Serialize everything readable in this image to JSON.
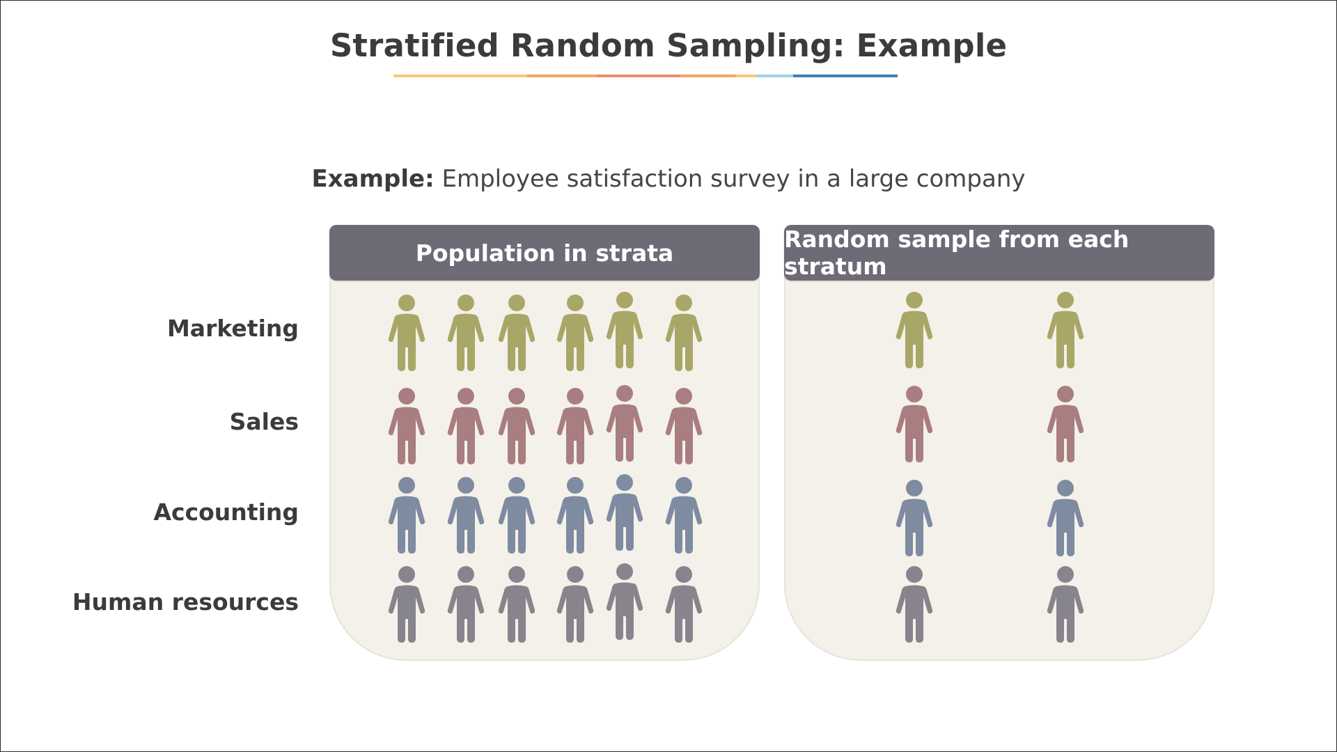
{
  "title": "Stratified Random Sampling: Example",
  "underline_colors": [
    "#f7c873",
    "#f3a765",
    "#ef8a6e",
    "#f3a765",
    "#f7c873",
    "#9fd0e6",
    "#3b83b5"
  ],
  "subtitle": {
    "lead": "Example:",
    "text": " Employee satisfaction survey in a large company"
  },
  "panels": {
    "population": {
      "title": "Population in strata"
    },
    "sample": {
      "title": "Random sample from each stratum"
    }
  },
  "strata": [
    {
      "label": "Marketing",
      "color": "#a9a767",
      "population_count": 6,
      "sample_count": 2
    },
    {
      "label": "Sales",
      "color": "#a97e80",
      "population_count": 6,
      "sample_count": 2
    },
    {
      "label": "Accounting",
      "color": "#7e8ba0",
      "population_count": 6,
      "sample_count": 2
    },
    {
      "label": "Human resources",
      "color": "#88848d",
      "population_count": 6,
      "sample_count": 2
    }
  ],
  "icons": {
    "person": "person-icon"
  }
}
